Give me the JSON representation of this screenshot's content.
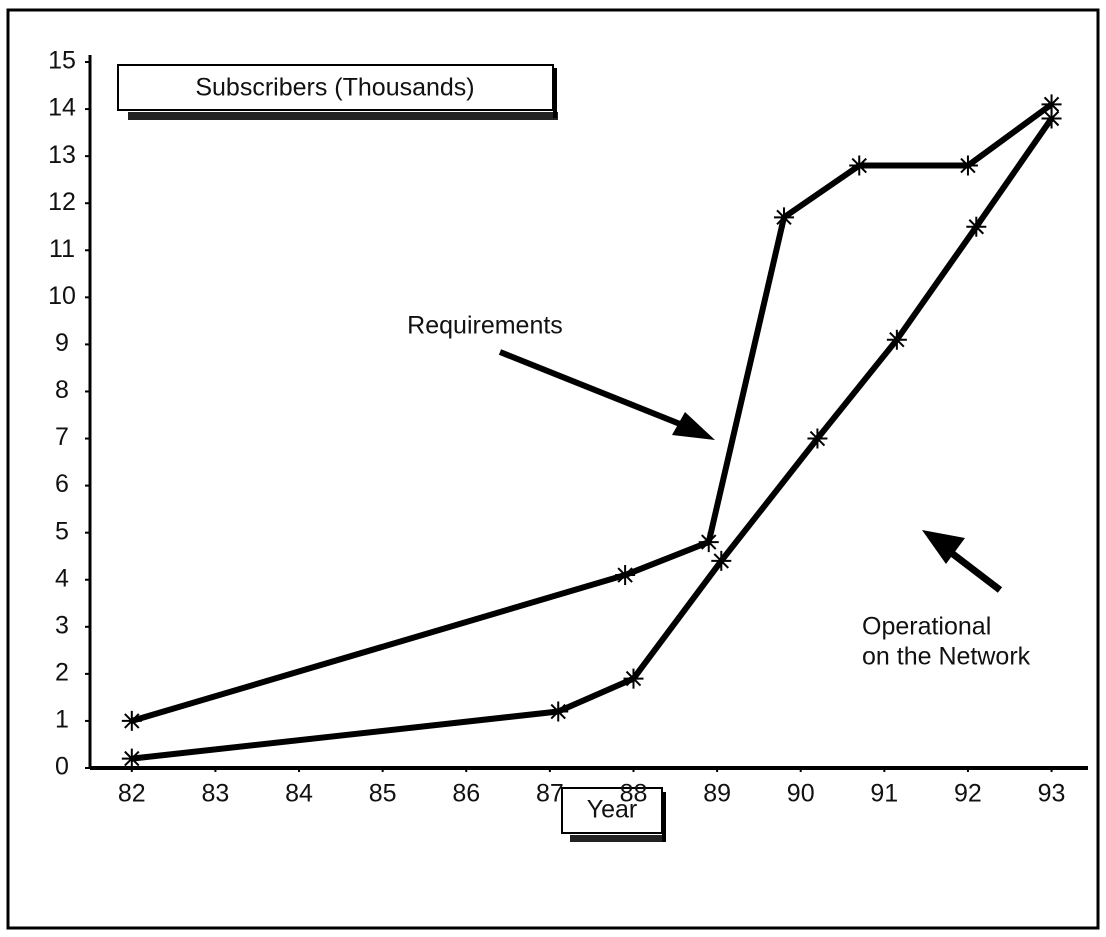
{
  "chart_data": {
    "type": "line",
    "y_label": "Subscribers (Thousands)",
    "x_label": "Year",
    "xlim": [
      81.5,
      93.4
    ],
    "xticks": [
      82,
      83,
      84,
      85,
      86,
      87,
      88,
      89,
      90,
      91,
      92,
      93
    ],
    "ylim": [
      0,
      15.2
    ],
    "yticks": [
      0,
      1,
      2,
      3,
      4,
      5,
      6,
      7,
      8,
      9,
      10,
      11,
      12,
      13,
      14,
      15
    ],
    "series": [
      {
        "name": "Requirements",
        "color": "#000000",
        "x": [
          82,
          87.9,
          88.9,
          89.8,
          90.7,
          92,
          93
        ],
        "values": [
          1,
          4.1,
          4.8,
          11.7,
          12.8,
          12.8,
          14.1
        ]
      },
      {
        "name": "Operational on the Network",
        "color": "#000000",
        "x": [
          82,
          87.1,
          88,
          89.05,
          90.2,
          91.15,
          92.1,
          93
        ],
        "values": [
          0.2,
          1.2,
          1.9,
          4.4,
          7,
          9.1,
          11.5,
          13.8
        ]
      }
    ],
    "annotations": [
      {
        "text": [
          "Requirements"
        ]
      },
      {
        "text": [
          "Operational",
          "on the Network"
        ]
      }
    ]
  }
}
